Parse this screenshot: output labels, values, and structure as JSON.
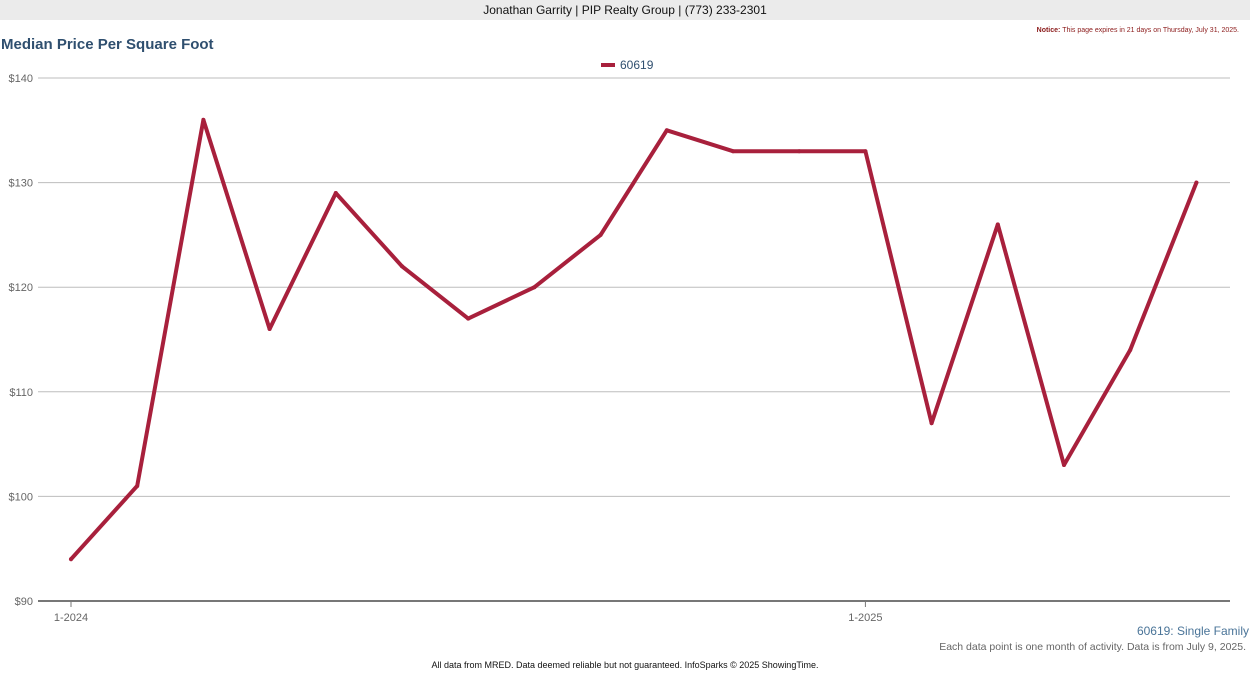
{
  "header": {
    "agent_line": "Jonathan Garrity | PIP Realty Group | (773) 233-2301",
    "notice_label": "Notice:",
    "notice_text": "This page expires in 21 days on Thursday, July 31, 2025."
  },
  "footer": {
    "series_caption": "60619: Single Family",
    "data_note": "Each data point is one month of activity. Data is from July 9, 2025.",
    "disclaimer": "All data from MRED. Data deemed reliable but not guaranteed. InfoSparks © 2025 ShowingTime."
  },
  "chart_data": {
    "type": "line",
    "title": "Median Price Per Square Foot",
    "xlabel": "",
    "ylabel": "",
    "x": [
      "2024-01",
      "2024-02",
      "2024-03",
      "2024-04",
      "2024-05",
      "2024-06",
      "2024-07",
      "2024-08",
      "2024-09",
      "2024-10",
      "2024-11",
      "2024-12",
      "2025-01",
      "2025-02",
      "2025-03",
      "2025-04",
      "2025-05",
      "2025-06"
    ],
    "x_ticks": [
      {
        "index": 0,
        "label": "1-2024"
      },
      {
        "index": 12,
        "label": "1-2025"
      }
    ],
    "ylim": [
      90,
      140
    ],
    "y_ticks": [
      {
        "value": 90,
        "label": "$90"
      },
      {
        "value": 100,
        "label": "$100"
      },
      {
        "value": 110,
        "label": "$110"
      },
      {
        "value": 120,
        "label": "$120"
      },
      {
        "value": 130,
        "label": "$130"
      },
      {
        "value": 140,
        "label": "$140"
      }
    ],
    "grid": true,
    "legend_position": "top-center",
    "series": [
      {
        "name": "60619",
        "color": "#a8203c",
        "values": [
          94,
          101,
          136,
          116,
          129,
          122,
          117,
          120,
          125,
          135,
          133,
          133,
          133,
          107,
          126,
          103,
          114,
          130
        ]
      }
    ]
  }
}
